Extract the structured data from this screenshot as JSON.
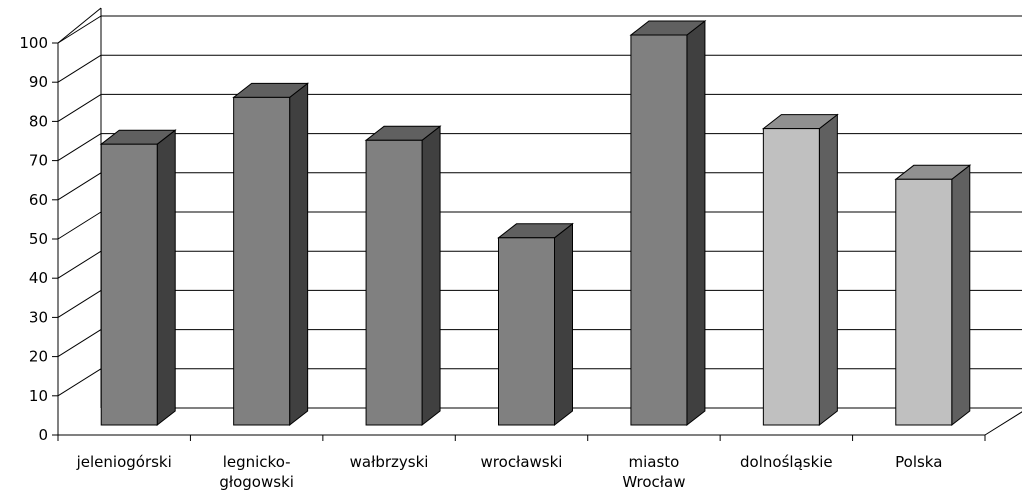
{
  "chart_data": {
    "type": "bar",
    "title": "",
    "xlabel": "",
    "ylabel": "",
    "categories": [
      [
        "jeleniogórski"
      ],
      [
        "legnicko-",
        "głogowski"
      ],
      [
        "wałbrzyski"
      ],
      [
        "wrocławski"
      ],
      [
        "miasto",
        "Wrocław"
      ],
      [
        "dolnośląskie"
      ],
      [
        "Polska"
      ]
    ],
    "values": [
      72,
      84,
      73,
      48,
      100,
      76,
      63
    ],
    "ylim": [
      0,
      100
    ],
    "yticks": [
      "0",
      "10",
      "20",
      "30",
      "40",
      "50",
      "60",
      "70",
      "80",
      "90",
      "100"
    ],
    "grid": true,
    "legend": "none",
    "colors": {
      "dark_front": "#808080",
      "dark_side": "#404040",
      "dark_top": "#606060",
      "light_front": "#c0c0c0",
      "light_side": "#606060",
      "light_top": "#909090",
      "grid": "#000000"
    },
    "bar_styles": [
      "dark",
      "dark",
      "dark",
      "dark",
      "dark",
      "light",
      "light"
    ]
  }
}
